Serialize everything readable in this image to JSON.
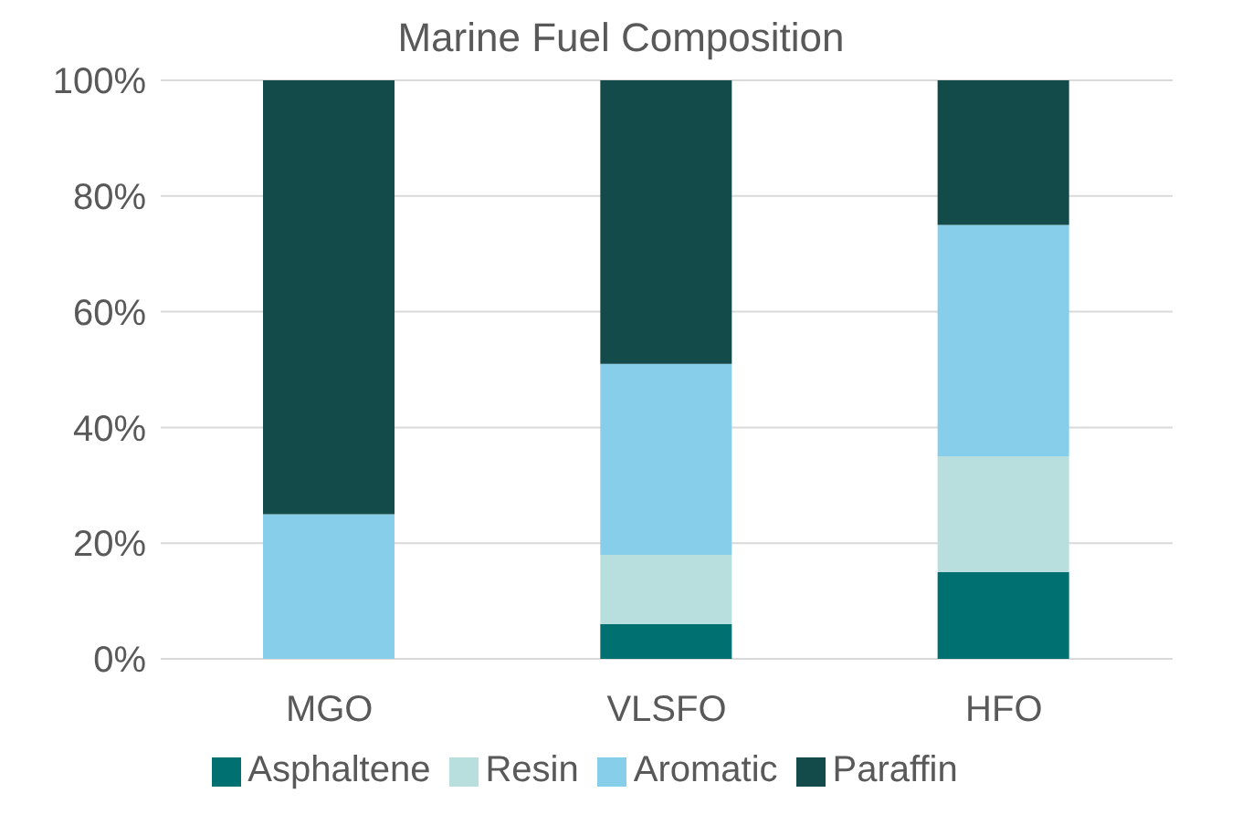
{
  "chart_data": {
    "type": "bar",
    "title": "Marine Fuel Composition",
    "categories": [
      "MGO",
      "VLSFO",
      "HFO"
    ],
    "stacked": true,
    "series": [
      {
        "name": "Asphaltene",
        "color": "#007070",
        "values": [
          0,
          6,
          15
        ]
      },
      {
        "name": "Resin",
        "color": "#b8dede",
        "values": [
          0,
          12,
          20
        ]
      },
      {
        "name": "Aromatic",
        "color": "#87ceeb",
        "values": [
          25,
          33,
          40
        ]
      },
      {
        "name": "Paraffin",
        "color": "#134a4a",
        "values": [
          75,
          49,
          25
        ]
      }
    ],
    "ylim": [
      0,
      100
    ],
    "yticks": [
      {
        "value": 0,
        "label": "0%"
      },
      {
        "value": 20,
        "label": "20%"
      },
      {
        "value": 40,
        "label": "40%"
      },
      {
        "value": 60,
        "label": "60%"
      },
      {
        "value": 80,
        "label": "80%"
      },
      {
        "value": 100,
        "label": "100%"
      }
    ],
    "grid": "y",
    "legend": "bottom"
  }
}
